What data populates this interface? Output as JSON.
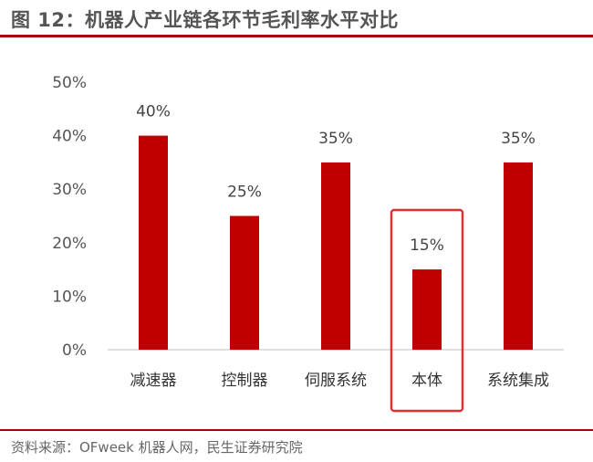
{
  "header": {
    "title": "图 12：机器人产业链各环节毛利率水平对比"
  },
  "footer": {
    "source": "资料来源：OFweek 机器人网，民生证券研究院"
  },
  "colors": {
    "bar": "#c00000",
    "highlight_box": "#e03030",
    "title_rule": "#a80000"
  },
  "chart_data": {
    "type": "bar",
    "categories": [
      "减速器",
      "控制器",
      "伺服系统",
      "本体",
      "系统集成"
    ],
    "values": [
      40,
      25,
      35,
      15,
      35
    ],
    "data_labels": [
      "40%",
      "25%",
      "35%",
      "15%",
      "35%"
    ],
    "y_ticks": [
      "0%",
      "10%",
      "20%",
      "30%",
      "40%",
      "50%"
    ],
    "ylim": [
      0,
      50
    ],
    "unit": "%",
    "highlighted_category": "本体",
    "grid": false,
    "legend": "none"
  }
}
